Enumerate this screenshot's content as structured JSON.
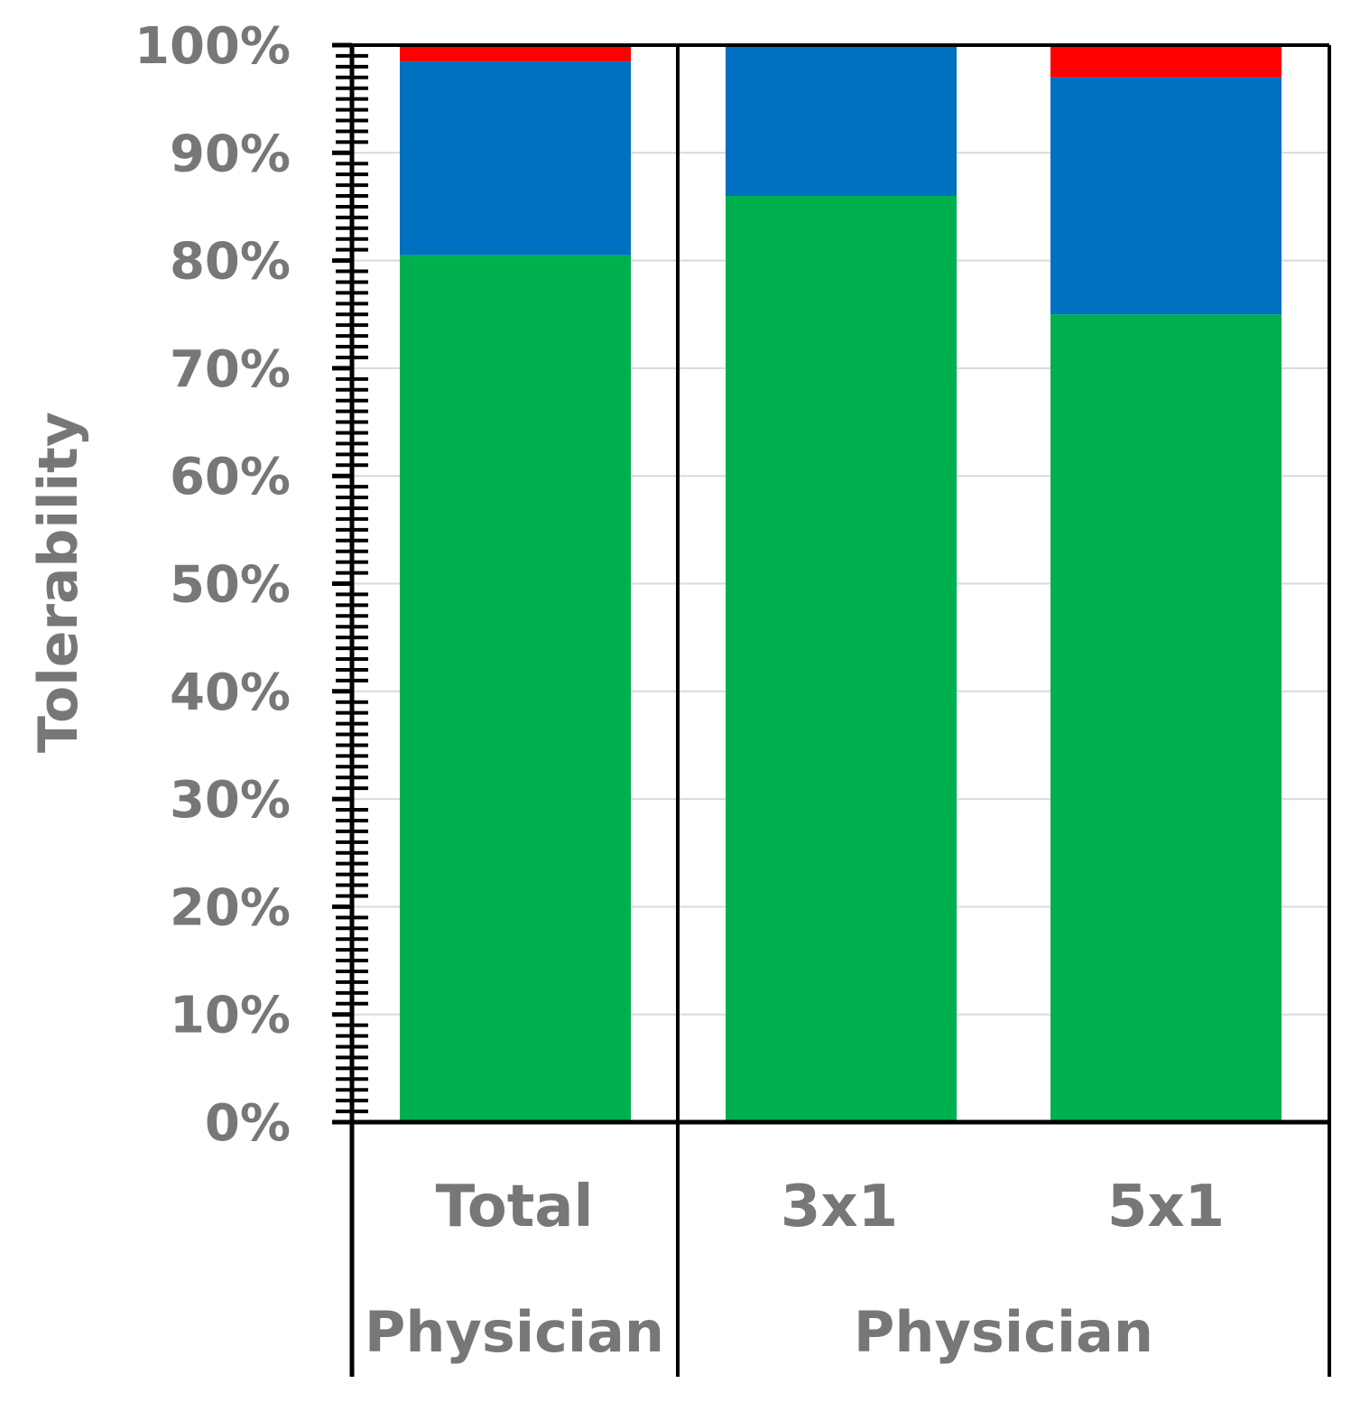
{
  "chart_data": {
    "type": "bar",
    "stacked": true,
    "ylabel": "Tolerability",
    "ylim": [
      0,
      100
    ],
    "y_tick_labels": [
      "0%",
      "10%",
      "20%",
      "30%",
      "40%",
      "50%",
      "60%",
      "70%",
      "80%",
      "90%",
      "100%"
    ],
    "grid": true,
    "categories": [
      "Total",
      "3x1",
      "5x1"
    ],
    "groups": [
      {
        "label": "Physician",
        "categories": [
          "Total"
        ]
      },
      {
        "label": "Physician",
        "categories": [
          "3x1",
          "5x1"
        ]
      }
    ],
    "series": [
      {
        "color": "#00b04f",
        "values": [
          80.5,
          86.0,
          75.0
        ]
      },
      {
        "color": "#0070c0",
        "values": [
          18.0,
          14.0,
          22.0
        ]
      },
      {
        "color": "#ff0000",
        "values": [
          1.5,
          0.0,
          3.0
        ]
      }
    ]
  }
}
